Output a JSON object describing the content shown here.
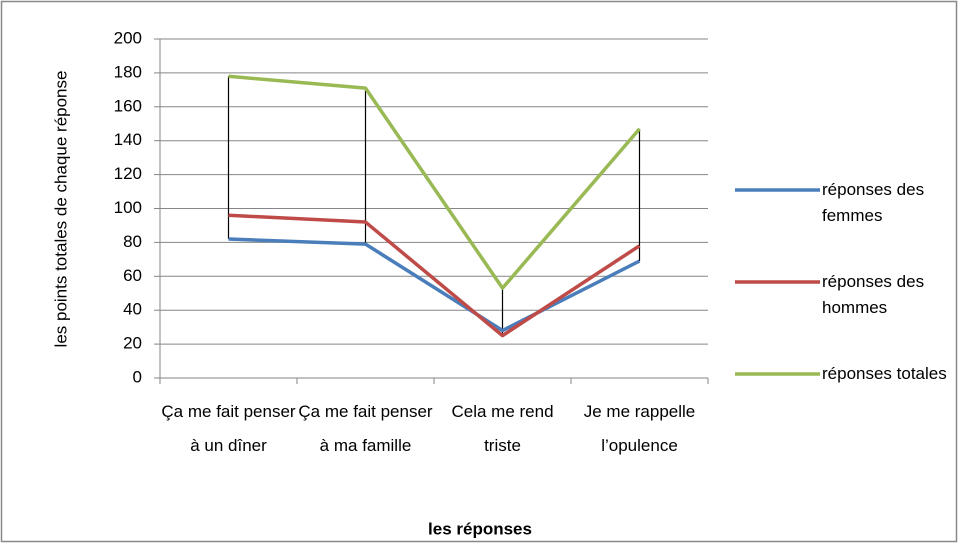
{
  "chart_data": {
    "type": "line",
    "xlabel": "les réponses",
    "ylabel": "les points totales de chaque réponse",
    "categories": [
      "Ça me fait penser à un dîner",
      "Ça me fait penser à ma famille",
      "Cela me rend triste",
      "Je me rappelle l’opulence"
    ],
    "series": [
      {
        "name": "réponses des femmes",
        "color": "#4a7ebb",
        "values": [
          82,
          79,
          28,
          69
        ]
      },
      {
        "name": "réponses des hommes",
        "color": "#be4b48",
        "values": [
          96,
          92,
          25,
          78
        ]
      },
      {
        "name": "réponses totales",
        "color": "#98b954",
        "values": [
          178,
          171,
          53,
          147
        ]
      }
    ],
    "ylim": [
      0,
      200
    ],
    "yticks": [
      0,
      20,
      40,
      60,
      80,
      100,
      120,
      140,
      160,
      180,
      200
    ],
    "grid": true,
    "high_low_lines": true,
    "legend": "right"
  }
}
